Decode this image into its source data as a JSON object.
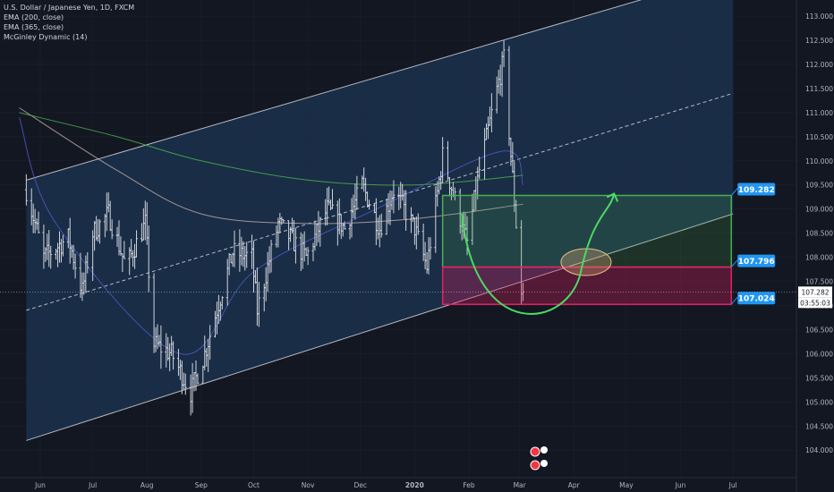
{
  "legend": {
    "symbol": "U.S. Dollar / Japanese Yen, 1D, FXCM",
    "indicators": [
      "EMA (200, close)",
      "EMA (365, close)",
      "McGinley Dynamic (14)"
    ]
  },
  "colors": {
    "background": "#131722",
    "candle": "#d1d4dc",
    "channel_fill": "#1c3553",
    "channel_line": "#d1d4dc",
    "ema200": "#b9a7a5",
    "ema365": "#4caf50",
    "mcginley": "#5057c8",
    "green_box": "#4caf50",
    "pink_box": "#e91e63",
    "label_bg": "#2196f3",
    "price_label_bg": "#ffffff"
  },
  "chart_data": {
    "type": "candlestick",
    "title": "U.S. Dollar / Japanese Yen, 1D, FXCM",
    "y_axis": {
      "ticks": [
        "113.000",
        "112.500",
        "112.000",
        "111.500",
        "111.000",
        "110.500",
        "110.000",
        "109.500",
        "109.000",
        "108.500",
        "108.000",
        "107.500",
        "107.000",
        "106.500",
        "106.000",
        "105.500",
        "105.000",
        "104.500",
        "104.000"
      ],
      "range": [
        103.8,
        113.15
      ]
    },
    "x_axis": {
      "ticks": [
        "Jun",
        "Jul",
        "Aug",
        "Sep",
        "Oct",
        "Nov",
        "Dec",
        "2020",
        "Feb",
        "Mar",
        "Apr",
        "May",
        "Jun",
        "Jul"
      ]
    },
    "price_path": [
      [
        "2019-05-24",
        109.4
      ],
      [
        "2019-06-03",
        108.0
      ],
      [
        "2019-06-17",
        108.4
      ],
      [
        "2019-06-25",
        107.3
      ],
      [
        "2019-07-01",
        108.5
      ],
      [
        "2019-07-10",
        108.9
      ],
      [
        "2019-07-20",
        107.8
      ],
      [
        "2019-07-31",
        108.7
      ],
      [
        "2019-08-05",
        106.2
      ],
      [
        "2019-08-15",
        106.0
      ],
      [
        "2019-08-26",
        105.2
      ],
      [
        "2019-09-03",
        106.0
      ],
      [
        "2019-09-19",
        108.1
      ],
      [
        "2019-09-30",
        108.0
      ],
      [
        "2019-10-03",
        106.9
      ],
      [
        "2019-10-15",
        108.7
      ],
      [
        "2019-10-31",
        108.0
      ],
      [
        "2019-11-12",
        109.0
      ],
      [
        "2019-11-22",
        108.6
      ],
      [
        "2019-12-02",
        109.5
      ],
      [
        "2019-12-12",
        108.6
      ],
      [
        "2019-12-20",
        109.4
      ],
      [
        "2020-01-01",
        108.6
      ],
      [
        "2020-01-08",
        107.8
      ],
      [
        "2020-01-17",
        110.1
      ],
      [
        "2020-01-31",
        108.3
      ],
      [
        "2020-02-07",
        109.8
      ],
      [
        "2020-02-19",
        111.8
      ],
      [
        "2020-02-21",
        112.1
      ],
      [
        "2020-02-24",
        110.6
      ],
      [
        "2020-02-28",
        108.7
      ],
      [
        "2020-03-02",
        107.3
      ],
      [
        "2020-03-03",
        107.28
      ]
    ],
    "indicators": [
      {
        "name": "EMA (200, close)",
        "points": [
          [
            "2019-05-20",
            111.1
          ],
          [
            "2019-07-15",
            109.8
          ],
          [
            "2019-09-01",
            108.9
          ],
          [
            "2019-11-01",
            108.7
          ],
          [
            "2020-01-01",
            108.8
          ],
          [
            "2020-03-03",
            109.1
          ]
        ]
      },
      {
        "name": "EMA (365, close)",
        "points": [
          [
            "2019-05-20",
            111.0
          ],
          [
            "2019-07-15",
            110.5
          ],
          [
            "2019-09-01",
            110.0
          ],
          [
            "2019-11-01",
            109.6
          ],
          [
            "2020-01-01",
            109.5
          ],
          [
            "2020-03-03",
            109.7
          ]
        ]
      },
      {
        "name": "McGinley Dynamic (14)",
        "points": [
          [
            "2019-05-20",
            110.9
          ],
          [
            "2019-06-10",
            108.7
          ],
          [
            "2019-08-20",
            106.0
          ],
          [
            "2019-10-01",
            107.7
          ],
          [
            "2019-12-10",
            109.0
          ],
          [
            "2020-02-20",
            110.2
          ],
          [
            "2020-03-03",
            109.5
          ]
        ]
      }
    ],
    "annotations": {
      "channel_upper": [
        [
          "2019-05-24",
          109.6
        ],
        [
          "2020-07-01",
          113.9
        ]
      ],
      "channel_lower": [
        [
          "2019-05-24",
          104.2
        ],
        [
          "2020-07-01",
          108.9
        ]
      ],
      "channel_mid": [
        [
          "2019-05-24",
          106.9
        ],
        [
          "2020-07-01",
          111.4
        ]
      ],
      "green_box": {
        "from": "2020-01-17",
        "to": "2020-06-30",
        "top": 109.282,
        "bottom": 107.796
      },
      "pink_box": {
        "from": "2020-01-17",
        "to": "2020-06-30",
        "top": 107.796,
        "bottom": 107.024
      },
      "price_labels": [
        "109.282",
        "107.796",
        "107.024"
      ],
      "current_price": "107.282",
      "countdown": "03:55:03"
    }
  }
}
